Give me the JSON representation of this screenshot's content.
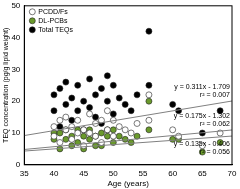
{
  "chart_data": {
    "type": "scatter",
    "x_label": "Age (years)",
    "y_label": "TEQ concentration (pg/g lipid weight)",
    "xlim": [
      35,
      70
    ],
    "xticks": [
      35,
      40,
      45,
      50,
      55,
      60,
      65,
      70
    ],
    "ylim": [
      0,
      50
    ],
    "yticks": [
      0,
      10,
      20,
      30,
      40,
      50
    ],
    "grid": false,
    "legend": "upper left",
    "series": [
      {
        "name": "PCDD/Fs",
        "color": "#ffffff",
        "marker": "circle",
        "x": [
          40,
          40,
          41,
          41,
          42,
          42,
          43,
          43,
          44,
          44,
          45,
          45,
          46,
          46,
          47,
          47,
          48,
          48,
          49,
          49,
          50,
          50,
          51,
          52,
          53,
          54,
          56,
          56,
          60,
          61,
          65,
          68
        ],
        "values": [
          12,
          9,
          14,
          7,
          11,
          15,
          8,
          12,
          10,
          14,
          6,
          11,
          10,
          16,
          9,
          13,
          14,
          7,
          11,
          17,
          9,
          14,
          12,
          11,
          10,
          13,
          22,
          14,
          11,
          9,
          6,
          10
        ]
      },
      {
        "name": "DL-PCBs",
        "color": "#6a9a2c",
        "marker": "circle",
        "x": [
          40,
          40,
          41,
          41,
          42,
          42,
          43,
          43,
          44,
          44,
          45,
          45,
          46,
          46,
          47,
          47,
          48,
          48,
          49,
          49,
          50,
          50,
          51,
          52,
          53,
          54,
          56,
          56,
          60,
          61,
          65,
          68
        ],
        "values": [
          10,
          8,
          10,
          5,
          8,
          11,
          6,
          9,
          7,
          11,
          5,
          9,
          8,
          11,
          6,
          9,
          10,
          6,
          9,
          11,
          7,
          11,
          9,
          8,
          7,
          9,
          20,
          11,
          8,
          8,
          4,
          7
        ]
      },
      {
        "name": "Total TEQs",
        "color": "#000000",
        "marker": "circle",
        "x": [
          40,
          40,
          41,
          41,
          42,
          42,
          43,
          43,
          44,
          44,
          45,
          45,
          46,
          46,
          47,
          47,
          48,
          48,
          49,
          49,
          50,
          50,
          51,
          52,
          53,
          54,
          56,
          56,
          60,
          61,
          65,
          68
        ],
        "values": [
          22,
          17,
          24,
          12,
          19,
          26,
          14,
          21,
          17,
          25,
          11,
          20,
          18,
          27,
          15,
          22,
          24,
          13,
          20,
          28,
          16,
          25,
          21,
          19,
          17,
          22,
          42,
          25,
          19,
          17,
          10,
          17
        ]
      },
      {
        "type": "line",
        "color": "#808080",
        "x": [
          35,
          70
        ],
        "values": [
          9.2,
          20.06
        ],
        "label": [
          "y = 0.311x - 1.709",
          "r² = 0.007"
        ]
      },
      {
        "type": "line",
        "color": "#808080",
        "x": [
          35,
          70
        ],
        "values": [
          4.82,
          10.95
        ],
        "label": [
          "y = 0.175x - 1.302",
          "r² = 0.062"
        ]
      },
      {
        "type": "line",
        "color": "#808080",
        "x": [
          35,
          70
        ],
        "values": [
          4.32,
          9.04
        ],
        "label": [
          "y = 0.135x - 0.406",
          "r² = 0.056"
        ]
      }
    ]
  }
}
